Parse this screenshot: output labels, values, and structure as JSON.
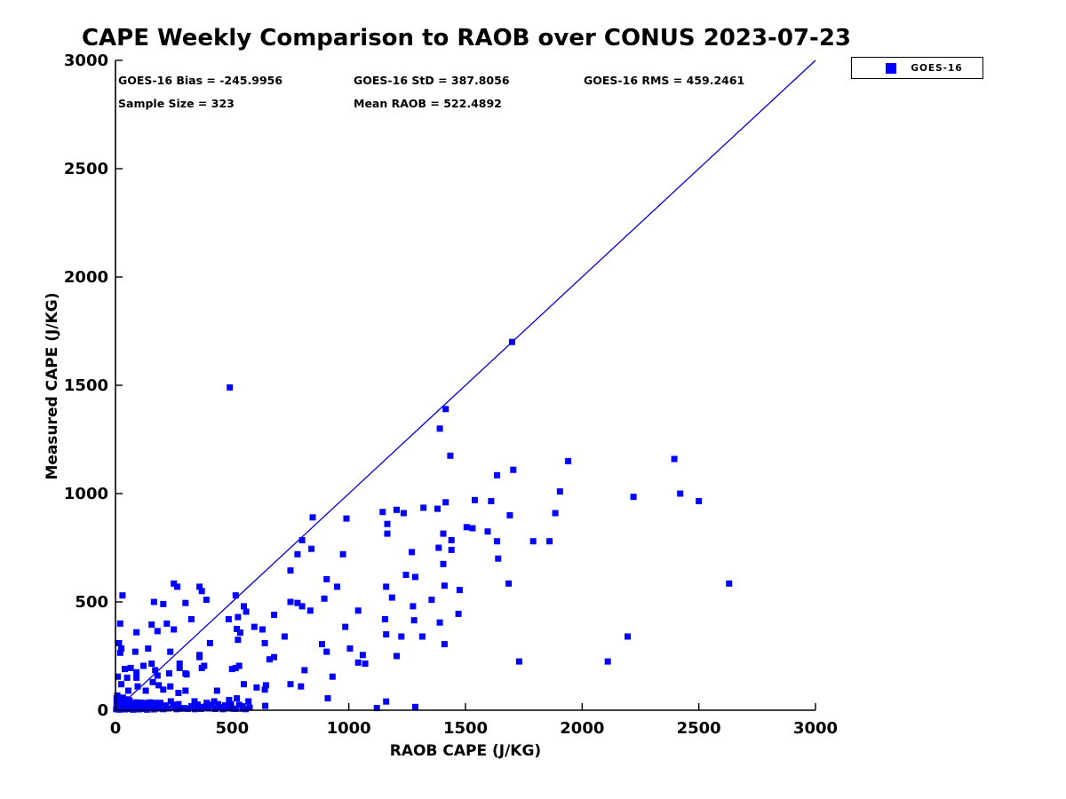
{
  "figure": {
    "background": "#ffffff"
  },
  "title": "CAPE Weekly Comparison to RAOB over CONUS 2023-07-23",
  "stats": {
    "bias": "GOES-16 Bias = -245.9956",
    "std": "GOES-16 StD = 387.8056",
    "rms": "GOES-16 RMS = 459.2461",
    "sample_size": "Sample Size = 323",
    "mean_raob": "Mean RAOB = 522.4892"
  },
  "legend": {
    "label": "GOES-16",
    "marker": "square",
    "color": "#0000ff"
  },
  "chart_data": {
    "type": "scatter",
    "title": "CAPE Weekly Comparison to RAOB over CONUS 2023-07-23",
    "xlabel": "RAOB CAPE (J/KG)",
    "ylabel": "Measured CAPE (J/KG)",
    "xlim": [
      0,
      3000
    ],
    "ylim": [
      0,
      3000
    ],
    "xticks": [
      0,
      500,
      1000,
      1500,
      2000,
      2500,
      3000
    ],
    "yticks": [
      0,
      500,
      1000,
      1500,
      2000,
      2500,
      3000
    ],
    "grid": false,
    "legend_position": "top-right",
    "marker_color": "#0000ff",
    "marker_size": 7,
    "line_color": "#0000dd",
    "identity_line": {
      "from": [
        0,
        0
      ],
      "to": [
        3000,
        3000
      ]
    },
    "series": [
      {
        "name": "GOES-16",
        "points": [
          [
            490,
            1490
          ],
          [
            1700,
            1700
          ],
          [
            1415,
            1390
          ],
          [
            1390,
            1300
          ],
          [
            1435,
            1175
          ],
          [
            1705,
            1110
          ],
          [
            1635,
            1085
          ],
          [
            1940,
            1150
          ],
          [
            1905,
            1010
          ],
          [
            2395,
            1160
          ],
          [
            2220,
            985
          ],
          [
            2420,
            1000
          ],
          [
            2500,
            965
          ],
          [
            1540,
            970
          ],
          [
            1610,
            965
          ],
          [
            845,
            890
          ],
          [
            990,
            885
          ],
          [
            1145,
            915
          ],
          [
            1205,
            925
          ],
          [
            1235,
            910
          ],
          [
            1320,
            935
          ],
          [
            1380,
            930
          ],
          [
            1415,
            960
          ],
          [
            1690,
            900
          ],
          [
            1885,
            910
          ],
          [
            1165,
            860
          ],
          [
            1165,
            815
          ],
          [
            1505,
            845
          ],
          [
            1530,
            840
          ],
          [
            1595,
            825
          ],
          [
            1405,
            815
          ],
          [
            840,
            745
          ],
          [
            800,
            785
          ],
          [
            1440,
            785
          ],
          [
            1635,
            780
          ],
          [
            1790,
            780
          ],
          [
            1860,
            780
          ],
          [
            1385,
            750
          ],
          [
            1440,
            740
          ],
          [
            975,
            720
          ],
          [
            780,
            720
          ],
          [
            1270,
            730
          ],
          [
            1640,
            700
          ],
          [
            1405,
            675
          ],
          [
            750,
            645
          ],
          [
            1245,
            625
          ],
          [
            1285,
            615
          ],
          [
            905,
            605
          ],
          [
            1160,
            570
          ],
          [
            1410,
            575
          ],
          [
            1475,
            555
          ],
          [
            1685,
            585
          ],
          [
            2630,
            585
          ],
          [
            950,
            570
          ],
          [
            250,
            585
          ],
          [
            265,
            570
          ],
          [
            360,
            570
          ],
          [
            370,
            550
          ],
          [
            390,
            510
          ],
          [
            515,
            530
          ],
          [
            895,
            515
          ],
          [
            750,
            500
          ],
          [
            780,
            495
          ],
          [
            800,
            480
          ],
          [
            550,
            480
          ],
          [
            1185,
            520
          ],
          [
            1355,
            510
          ],
          [
            300,
            495
          ],
          [
            165,
            500
          ],
          [
            205,
            490
          ],
          [
            30,
            530
          ],
          [
            560,
            455
          ],
          [
            525,
            430
          ],
          [
            520,
            375
          ],
          [
            535,
            358
          ],
          [
            680,
            440
          ],
          [
            835,
            460
          ],
          [
            1040,
            460
          ],
          [
            1275,
            480
          ],
          [
            1470,
            445
          ],
          [
            1155,
            420
          ],
          [
            1280,
            415
          ],
          [
            1390,
            405
          ],
          [
            985,
            385
          ],
          [
            20,
            400
          ],
          [
            155,
            395
          ],
          [
            220,
            400
          ],
          [
            325,
            420
          ],
          [
            485,
            420
          ],
          [
            90,
            360
          ],
          [
            180,
            365
          ],
          [
            250,
            373
          ],
          [
            630,
            373
          ],
          [
            595,
            385
          ],
          [
            1160,
            350
          ],
          [
            2195,
            340
          ],
          [
            1225,
            340
          ],
          [
            1315,
            340
          ],
          [
            725,
            340
          ],
          [
            1410,
            305
          ],
          [
            640,
            310
          ],
          [
            885,
            305
          ],
          [
            405,
            310
          ],
          [
            15,
            310
          ],
          [
            25,
            285
          ],
          [
            20,
            265
          ],
          [
            85,
            270
          ],
          [
            140,
            285
          ],
          [
            235,
            270
          ],
          [
            360,
            255
          ],
          [
            525,
            325
          ],
          [
            905,
            270
          ],
          [
            1005,
            285
          ],
          [
            1205,
            250
          ],
          [
            1060,
            255
          ],
          [
            2110,
            225
          ],
          [
            1730,
            225
          ],
          [
            660,
            235
          ],
          [
            680,
            245
          ],
          [
            275,
            215
          ],
          [
            1070,
            215
          ],
          [
            1040,
            220
          ],
          [
            120,
            205
          ],
          [
            155,
            215
          ],
          [
            530,
            205
          ],
          [
            380,
            205
          ],
          [
            360,
            245
          ],
          [
            10,
            155
          ],
          [
            40,
            190
          ],
          [
            65,
            195
          ],
          [
            90,
            175
          ],
          [
            170,
            185
          ],
          [
            230,
            170
          ],
          [
            275,
            195
          ],
          [
            305,
            165
          ],
          [
            370,
            195
          ],
          [
            500,
            190
          ],
          [
            515,
            195
          ],
          [
            300,
            170
          ],
          [
            180,
            160
          ],
          [
            930,
            155
          ],
          [
            810,
            185
          ],
          [
            50,
            150
          ],
          [
            90,
            150
          ],
          [
            160,
            130
          ],
          [
            25,
            120
          ],
          [
            750,
            120
          ],
          [
            550,
            120
          ],
          [
            645,
            115
          ],
          [
            185,
            115
          ],
          [
            95,
            110
          ],
          [
            235,
            110
          ],
          [
            605,
            105
          ],
          [
            795,
            110
          ],
          [
            55,
            90
          ],
          [
            130,
            90
          ],
          [
            205,
            95
          ],
          [
            270,
            80
          ],
          [
            300,
            90
          ],
          [
            435,
            90
          ],
          [
            520,
            55
          ],
          [
            640,
            95
          ],
          [
            910,
            55
          ],
          [
            487,
            47
          ],
          [
            1160,
            40
          ],
          [
            5,
            55
          ],
          [
            18,
            48
          ],
          [
            32,
            58
          ],
          [
            45,
            50
          ],
          [
            60,
            45
          ],
          [
            8,
            68
          ],
          [
            570,
            41
          ],
          [
            339,
            41
          ],
          [
            423,
            41
          ],
          [
            237,
            41
          ],
          [
            192,
            34
          ],
          [
            256,
            14
          ],
          [
            282,
            7
          ],
          [
            358,
            14
          ],
          [
            391,
            34
          ],
          [
            449,
            14
          ],
          [
            506,
            7
          ],
          [
            544,
            7
          ],
          [
            1120,
            10
          ],
          [
            1285,
            15
          ],
          [
            642,
            20
          ],
          [
            3,
            5
          ],
          [
            10,
            18
          ],
          [
            15,
            3
          ],
          [
            22,
            30
          ],
          [
            28,
            8
          ],
          [
            35,
            20
          ],
          [
            40,
            4
          ],
          [
            48,
            14
          ],
          [
            55,
            28
          ],
          [
            60,
            6
          ],
          [
            68,
            18
          ],
          [
            75,
            3
          ],
          [
            80,
            26
          ],
          [
            88,
            10
          ],
          [
            95,
            22
          ],
          [
            100,
            4
          ],
          [
            108,
            16
          ],
          [
            115,
            30
          ],
          [
            122,
            6
          ],
          [
            128,
            20
          ],
          [
            135,
            3
          ],
          [
            142,
            25
          ],
          [
            150,
            10
          ],
          [
            158,
            18
          ],
          [
            165,
            4
          ],
          [
            172,
            28
          ],
          [
            178,
            12
          ],
          [
            5,
            35
          ],
          [
            30,
            35
          ],
          [
            52,
            38
          ],
          [
            70,
            33
          ],
          [
            90,
            36
          ],
          [
            110,
            35
          ],
          [
            130,
            33
          ],
          [
            148,
            36
          ],
          [
            168,
            34
          ],
          [
            185,
            8
          ],
          [
            205,
            5
          ],
          [
            215,
            22
          ],
          [
            228,
            8
          ],
          [
            248,
            25
          ],
          [
            262,
            5
          ],
          [
            270,
            28
          ],
          [
            295,
            10
          ],
          [
            310,
            6
          ],
          [
            325,
            18
          ],
          [
            340,
            5
          ],
          [
            352,
            26
          ],
          [
            368,
            6
          ],
          [
            382,
            16
          ],
          [
            400,
            8
          ],
          [
            412,
            25
          ],
          [
            428,
            6
          ],
          [
            440,
            28
          ],
          [
            460,
            5
          ],
          [
            470,
            22
          ],
          [
            480,
            8
          ],
          [
            495,
            28
          ],
          [
            515,
            6
          ],
          [
            530,
            25
          ],
          [
            545,
            18
          ],
          [
            558,
            5
          ],
          [
            575,
            12
          ]
        ]
      }
    ]
  }
}
